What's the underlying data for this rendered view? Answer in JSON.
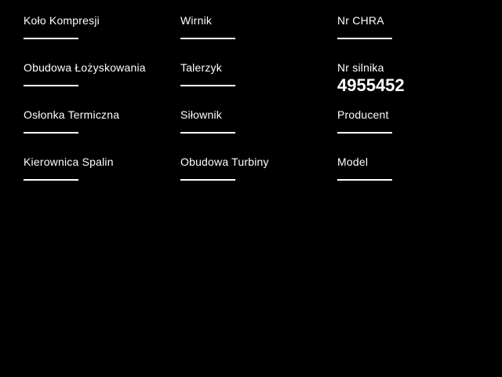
{
  "screen": {
    "background_color": "#000000",
    "text_color": "#ffffff"
  },
  "form": {
    "fields": [
      {
        "id": "kolo-kompresji",
        "label": "Koło Kompresji",
        "value": ""
      },
      {
        "id": "obudowa-lozyskowania",
        "label": "Obudowa Łożyskowania",
        "value": ""
      },
      {
        "id": "oslonka-termiczna",
        "label": "Osłonka Termiczna",
        "value": ""
      },
      {
        "id": "kierownica-spalin",
        "label": "Kierownica Spalin",
        "value": ""
      },
      {
        "id": "wirnik",
        "label": "Wirnik",
        "value": ""
      },
      {
        "id": "talerzyk",
        "label": "Talerzyk",
        "value": ""
      },
      {
        "id": "silownik",
        "label": "Siłownik",
        "value": ""
      },
      {
        "id": "obudowa-turbiny",
        "label": "Obudowa Turbiny",
        "value": ""
      },
      {
        "id": "nr-chra",
        "label": "Nr CHRA",
        "value": ""
      },
      {
        "id": "nr-silnika",
        "label": "Nr silnika",
        "value": "4955452"
      },
      {
        "id": "producent",
        "label": "Producent",
        "value": ""
      },
      {
        "id": "model",
        "label": "Model",
        "value": ""
      }
    ]
  }
}
